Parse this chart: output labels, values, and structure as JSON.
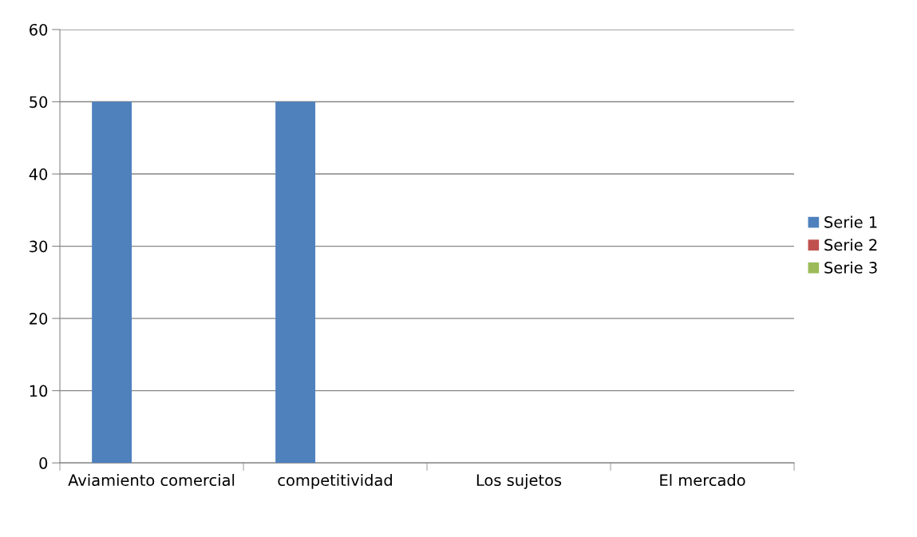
{
  "chart_data": {
    "type": "bar",
    "categories": [
      "Aviamiento comercial",
      "competitividad",
      "Los sujetos",
      "El mercado"
    ],
    "series": [
      {
        "name": "Serie 1",
        "color": "#4f81bd",
        "values": [
          50,
          50,
          0,
          0
        ]
      },
      {
        "name": "Serie 2",
        "color": "#c0504d",
        "values": [
          0,
          0,
          0,
          0
        ]
      },
      {
        "name": "Serie 3",
        "color": "#9bbb59",
        "values": [
          0,
          0,
          0,
          0
        ]
      }
    ],
    "ylim": [
      0,
      60
    ],
    "yticks": [
      0,
      10,
      20,
      30,
      40,
      50,
      60
    ],
    "grid": "y",
    "legend": "right"
  }
}
